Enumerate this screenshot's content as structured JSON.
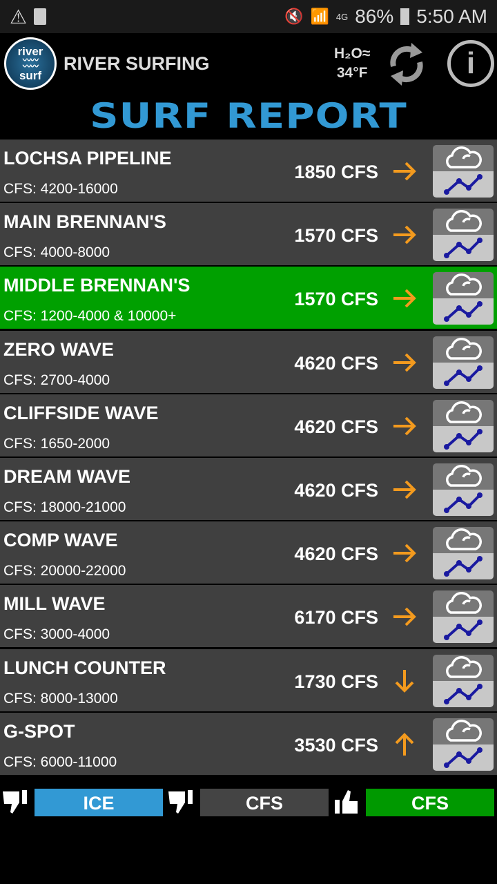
{
  "status_bar": {
    "battery": "86%",
    "time": "5:50 AM",
    "network": "4G"
  },
  "header": {
    "logo_top": "river",
    "logo_bottom": "surf",
    "app_title": "RIVER SURFING",
    "water_label": "H₂O≈",
    "water_temp": "34°F",
    "refresh_icon": "refresh-icon",
    "info_icon": "info-icon"
  },
  "title": "SURF REPORT",
  "colors": {
    "highlight": "#00a000",
    "row": "#404040",
    "accent": "#3299d4",
    "arrow": "#f39a1e"
  },
  "spots": [
    {
      "name": "LOCHSA PIPELINE",
      "range": "CFS: 4200-16000",
      "cfs": "1850 CFS",
      "trend": "right",
      "highlight": false
    },
    {
      "name": "MAIN BRENNAN'S",
      "range": "CFS: 4000-8000",
      "cfs": "1570 CFS",
      "trend": "right",
      "highlight": false
    },
    {
      "name": "MIDDLE BRENNAN'S",
      "range": "CFS: 1200-4000 & 10000+",
      "cfs": "1570 CFS",
      "trend": "right",
      "highlight": true
    },
    {
      "name": "ZERO WAVE",
      "range": "CFS: 2700-4000",
      "cfs": "4620 CFS",
      "trend": "right",
      "highlight": false
    },
    {
      "name": "CLIFFSIDE WAVE",
      "range": "CFS: 1650-2000",
      "cfs": "4620 CFS",
      "trend": "right",
      "highlight": false
    },
    {
      "name": "DREAM WAVE",
      "range": "CFS: 18000-21000",
      "cfs": "4620 CFS",
      "trend": "right",
      "highlight": false
    },
    {
      "name": "COMP WAVE",
      "range": "CFS: 20000-22000",
      "cfs": "4620 CFS",
      "trend": "right",
      "highlight": false
    },
    {
      "name": "MILL WAVE",
      "range": "CFS: 3000-4000",
      "cfs": "6170 CFS",
      "trend": "right",
      "highlight": false
    },
    {
      "name": "LUNCH COUNTER",
      "range": "CFS: 8000-13000",
      "cfs": "1730 CFS",
      "trend": "down",
      "highlight": false
    },
    {
      "name": "G-SPOT",
      "range": "CFS: 6000-11000",
      "cfs": "3530 CFS",
      "trend": "up",
      "highlight": false
    }
  ],
  "legend": [
    {
      "label": "ICE",
      "icon": "thumbs-down-icon",
      "color": "#3299d4"
    },
    {
      "label": "CFS",
      "icon": "thumbs-down-icon",
      "color": "#444444"
    },
    {
      "label": "CFS",
      "icon": "thumbs-up-icon",
      "color": "#009900"
    }
  ]
}
